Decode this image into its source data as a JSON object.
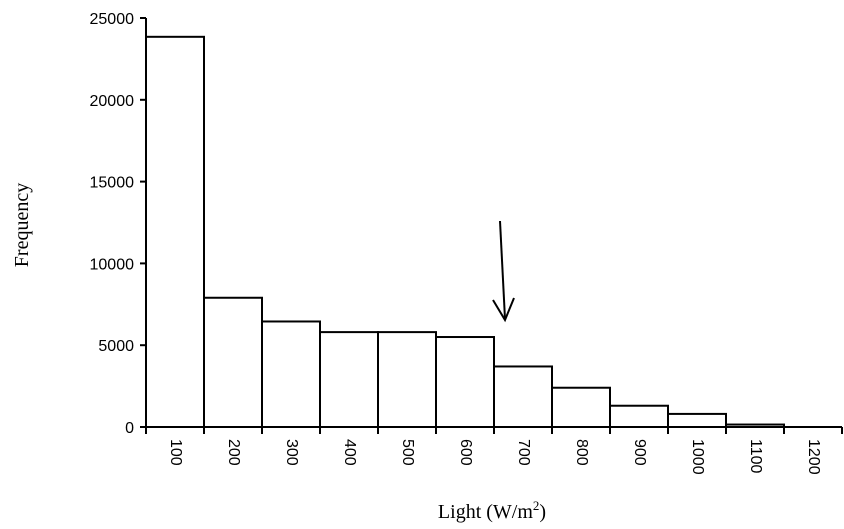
{
  "chart_data": {
    "type": "bar",
    "title": "",
    "categories": [
      "100",
      "200",
      "300",
      "400",
      "500",
      "600",
      "700",
      "800",
      "900",
      "1000",
      "1100",
      "1200"
    ],
    "values": [
      23850,
      7900,
      6450,
      5800,
      5800,
      5500,
      3700,
      2400,
      1300,
      800,
      150,
      0
    ],
    "ylim": [
      0,
      25000
    ],
    "yticks": [
      "0",
      "5000",
      "10000",
      "15000",
      "20000",
      "25000"
    ],
    "ylabel": "Frequency",
    "xlabel": {
      "prefix": "Light (W/m",
      "superscript": "2",
      "suffix": ")"
    },
    "grid": false,
    "legend": "none",
    "annotation": {
      "type": "arrow",
      "label": ""
    },
    "colors": {
      "bar_fill": "#ffffff",
      "bar_stroke": "#000000",
      "axis": "#000000"
    }
  }
}
